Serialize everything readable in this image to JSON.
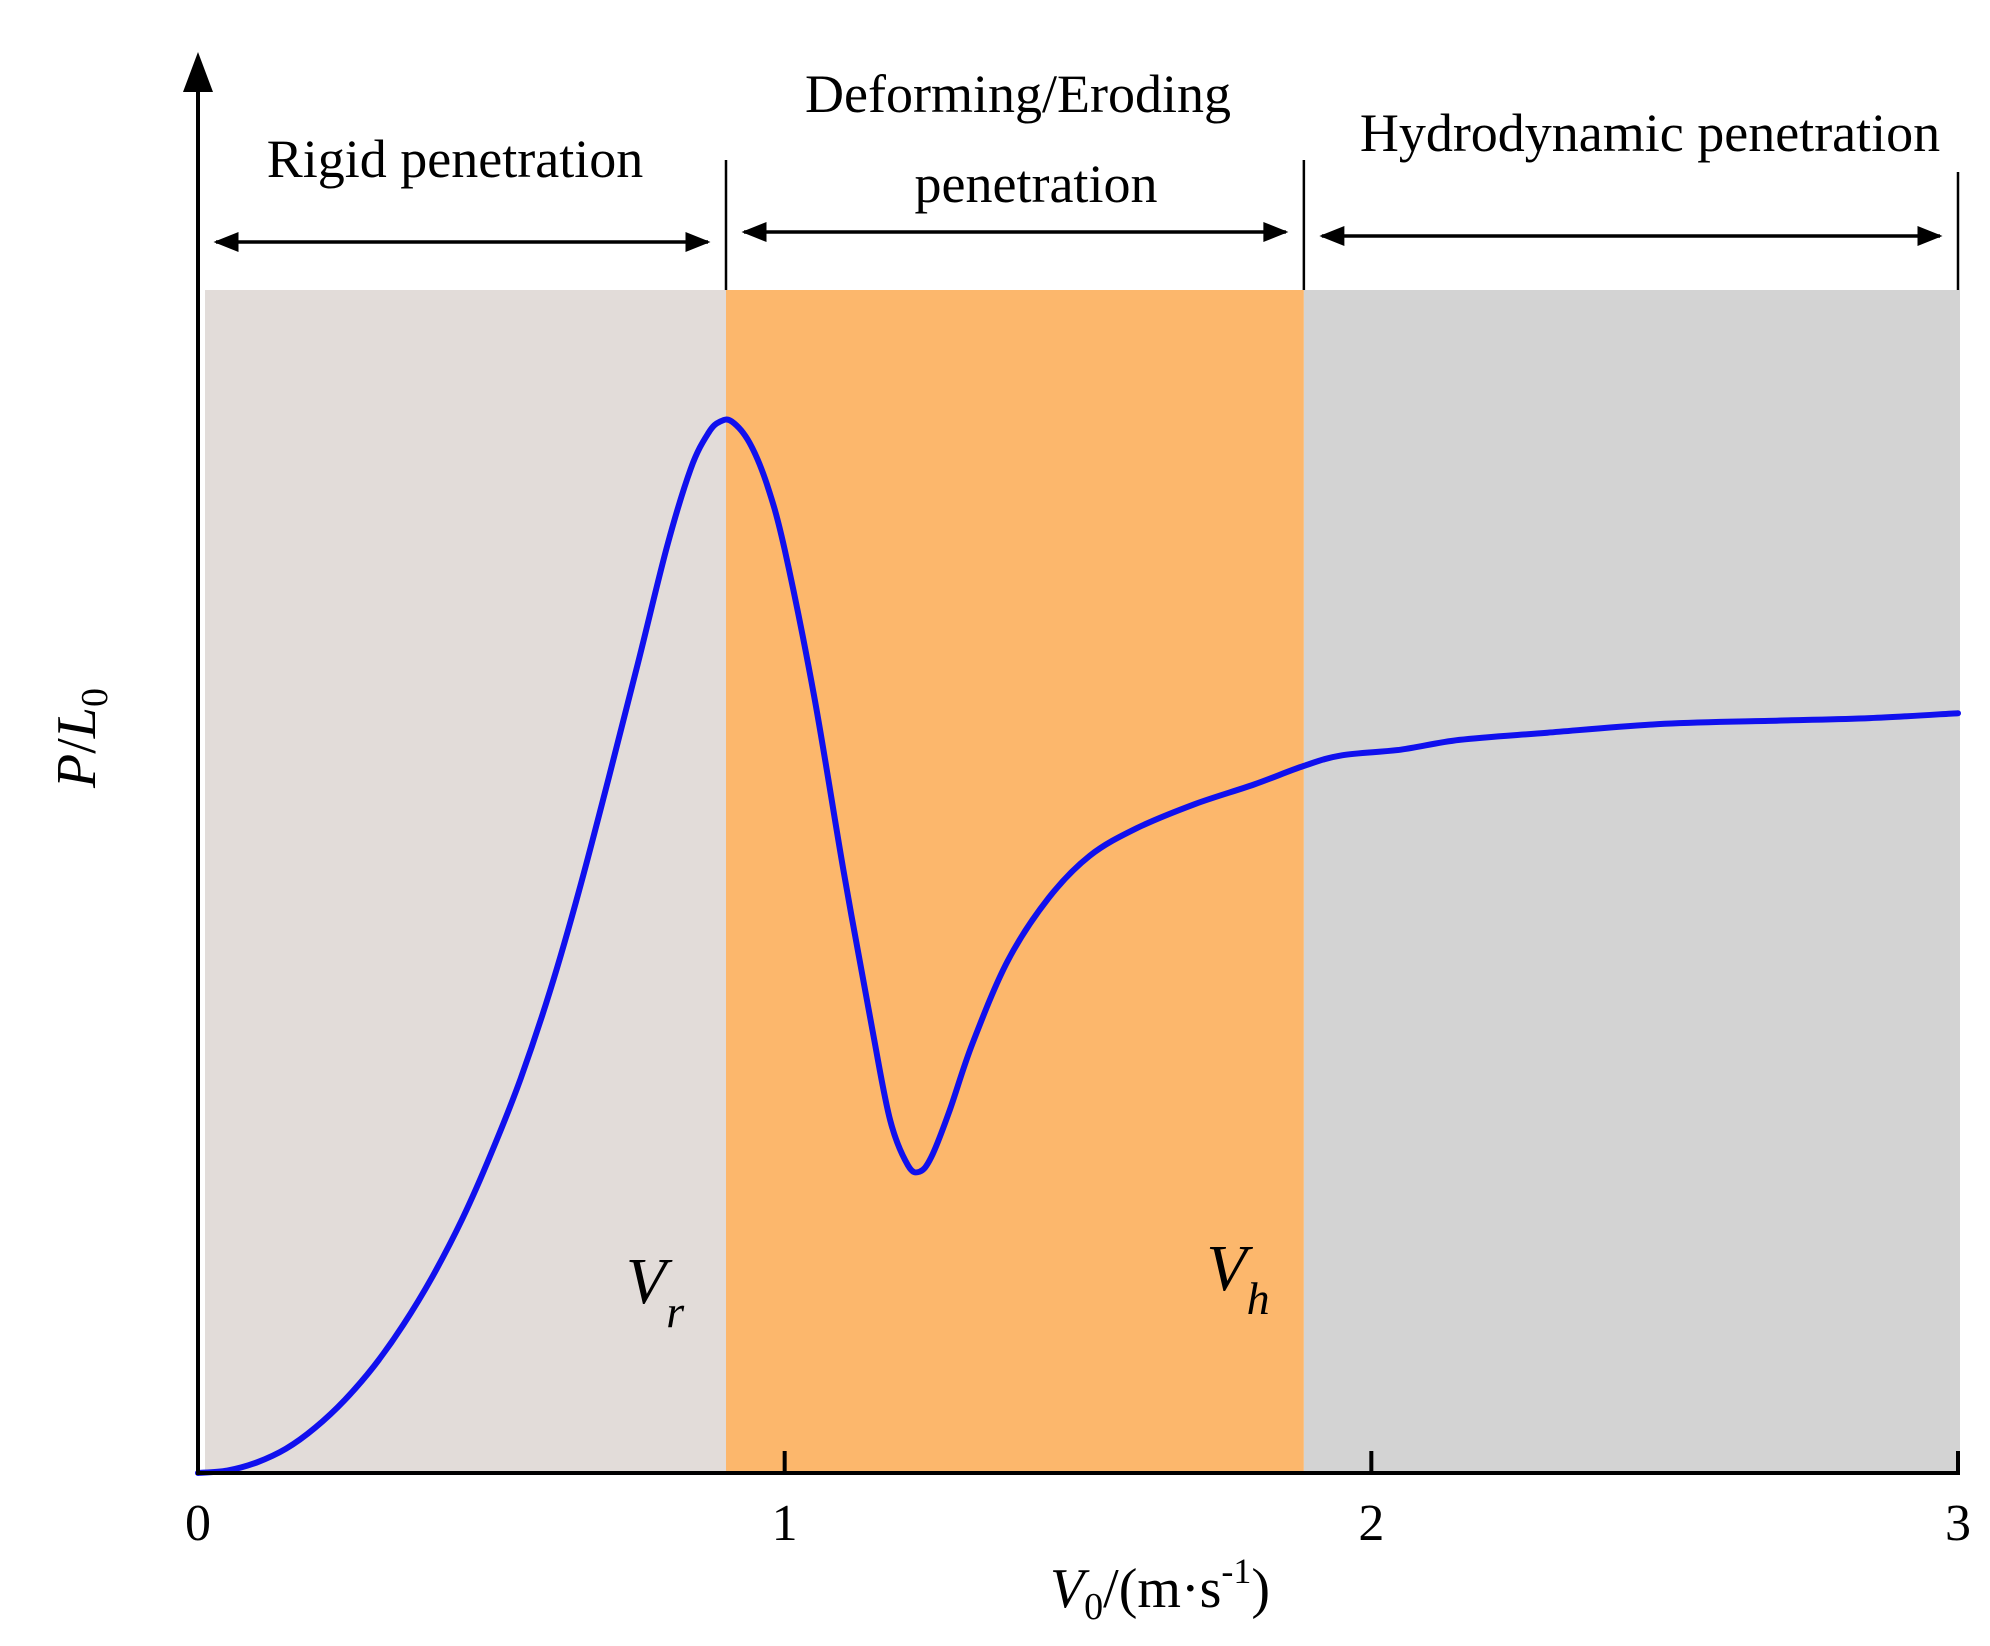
{
  "chart_data": {
    "type": "line",
    "xlabel": {
      "main": "V",
      "sub": "0",
      "unit_prefix": "/(m·s",
      "unit_sup": "-1",
      "unit_suffix": ")"
    },
    "ylabel": {
      "p": "P",
      "slash": "/",
      "l": "L",
      "sub": "0"
    },
    "x_ticks": [
      0,
      1,
      2,
      3
    ],
    "x_tick_labels": [
      "0",
      "1",
      "2",
      "3"
    ],
    "xlim": [
      0,
      3
    ],
    "ylim": [
      0,
      2
    ],
    "grid": false,
    "regions": [
      {
        "label_lines": [
          "Rigid penetration"
        ],
        "x_start": 0,
        "x_end": 0.9,
        "color": "#e2dcd9"
      },
      {
        "label_lines": [
          "Deforming/Eroding",
          "penetration"
        ],
        "x_start": 0.9,
        "x_end": 1.885,
        "color": "#fcb76c"
      },
      {
        "label_lines": [
          "Hydrodynamic penetration"
        ],
        "x_start": 1.885,
        "x_end": 3,
        "color": "#d3d3d3"
      }
    ],
    "markers": [
      {
        "main": "V",
        "sub": "r",
        "x": 0.9
      },
      {
        "main": "V",
        "sub": "h",
        "x": 1.885
      }
    ],
    "series": [
      {
        "color": "#1010ee",
        "x": [
          0,
          0.05,
          0.1,
          0.15,
          0.2,
          0.25,
          0.3,
          0.35,
          0.4,
          0.45,
          0.5,
          0.55,
          0.6,
          0.65,
          0.7,
          0.75,
          0.8,
          0.84,
          0.87,
          0.89,
          0.91,
          0.94,
          0.97,
          1.0,
          1.05,
          1.1,
          1.15,
          1.18,
          1.21,
          1.23,
          1.25,
          1.28,
          1.32,
          1.38,
          1.45,
          1.52,
          1.6,
          1.7,
          1.8,
          1.885,
          1.95,
          2.05,
          2.15,
          2.3,
          2.5,
          2.7,
          2.85,
          3.0
        ],
        "values": [
          0,
          0.003,
          0.013,
          0.03,
          0.056,
          0.09,
          0.132,
          0.183,
          0.243,
          0.313,
          0.395,
          0.487,
          0.595,
          0.72,
          0.858,
          1.0,
          1.145,
          1.24,
          1.284,
          1.298,
          1.298,
          1.272,
          1.22,
          1.14,
          0.96,
          0.745,
          0.545,
          0.435,
          0.38,
          0.372,
          0.39,
          0.445,
          0.53,
          0.632,
          0.71,
          0.762,
          0.796,
          0.826,
          0.85,
          0.873,
          0.886,
          0.893,
          0.905,
          0.914,
          0.925,
          0.929,
          0.932,
          0.938
        ]
      }
    ]
  }
}
